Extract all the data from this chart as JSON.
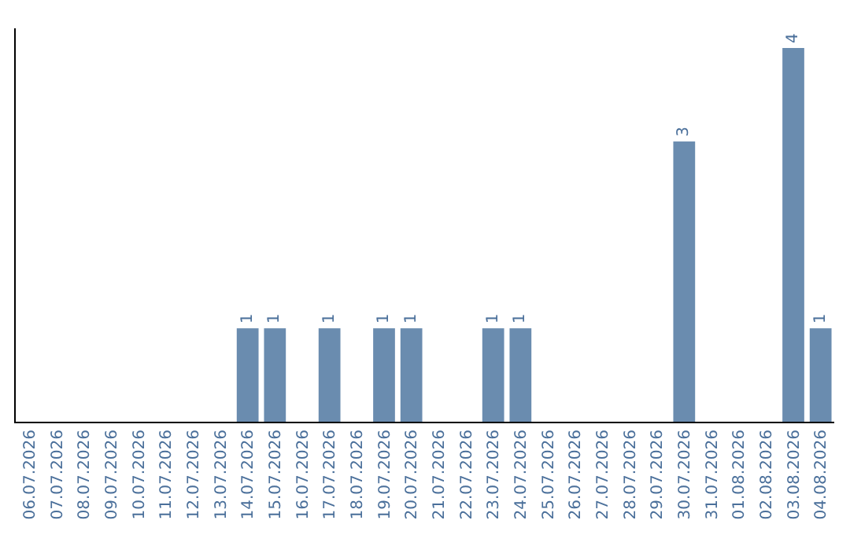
{
  "chart_data": {
    "type": "bar",
    "categories": [
      "06.07.2026",
      "07.07.2026",
      "08.07.2026",
      "09.07.2026",
      "10.07.2026",
      "11.07.2026",
      "12.07.2026",
      "13.07.2026",
      "14.07.2026",
      "15.07.2026",
      "16.07.2026",
      "17.07.2026",
      "18.07.2026",
      "19.07.2026",
      "20.07.2026",
      "21.07.2026",
      "22.07.2026",
      "23.07.2026",
      "24.07.2026",
      "25.07.2026",
      "26.07.2026",
      "27.07.2026",
      "28.07.2026",
      "29.07.2026",
      "30.07.2026",
      "31.07.2026",
      "01.08.2026",
      "02.08.2026",
      "03.08.2026",
      "04.08.2026"
    ],
    "values": [
      0,
      0,
      0,
      0,
      0,
      0,
      0,
      0,
      1,
      1,
      0,
      1,
      0,
      1,
      1,
      0,
      0,
      1,
      1,
      0,
      0,
      0,
      0,
      0,
      3,
      0,
      0,
      0,
      4,
      1
    ],
    "value_labels": [
      null,
      null,
      null,
      null,
      null,
      null,
      null,
      null,
      "1",
      "1",
      null,
      "1",
      null,
      "1",
      "1",
      null,
      null,
      "1",
      "1",
      null,
      null,
      null,
      null,
      null,
      "3",
      null,
      null,
      null,
      "4",
      "1"
    ],
    "color": "#6a8caf",
    "legend": false
  }
}
